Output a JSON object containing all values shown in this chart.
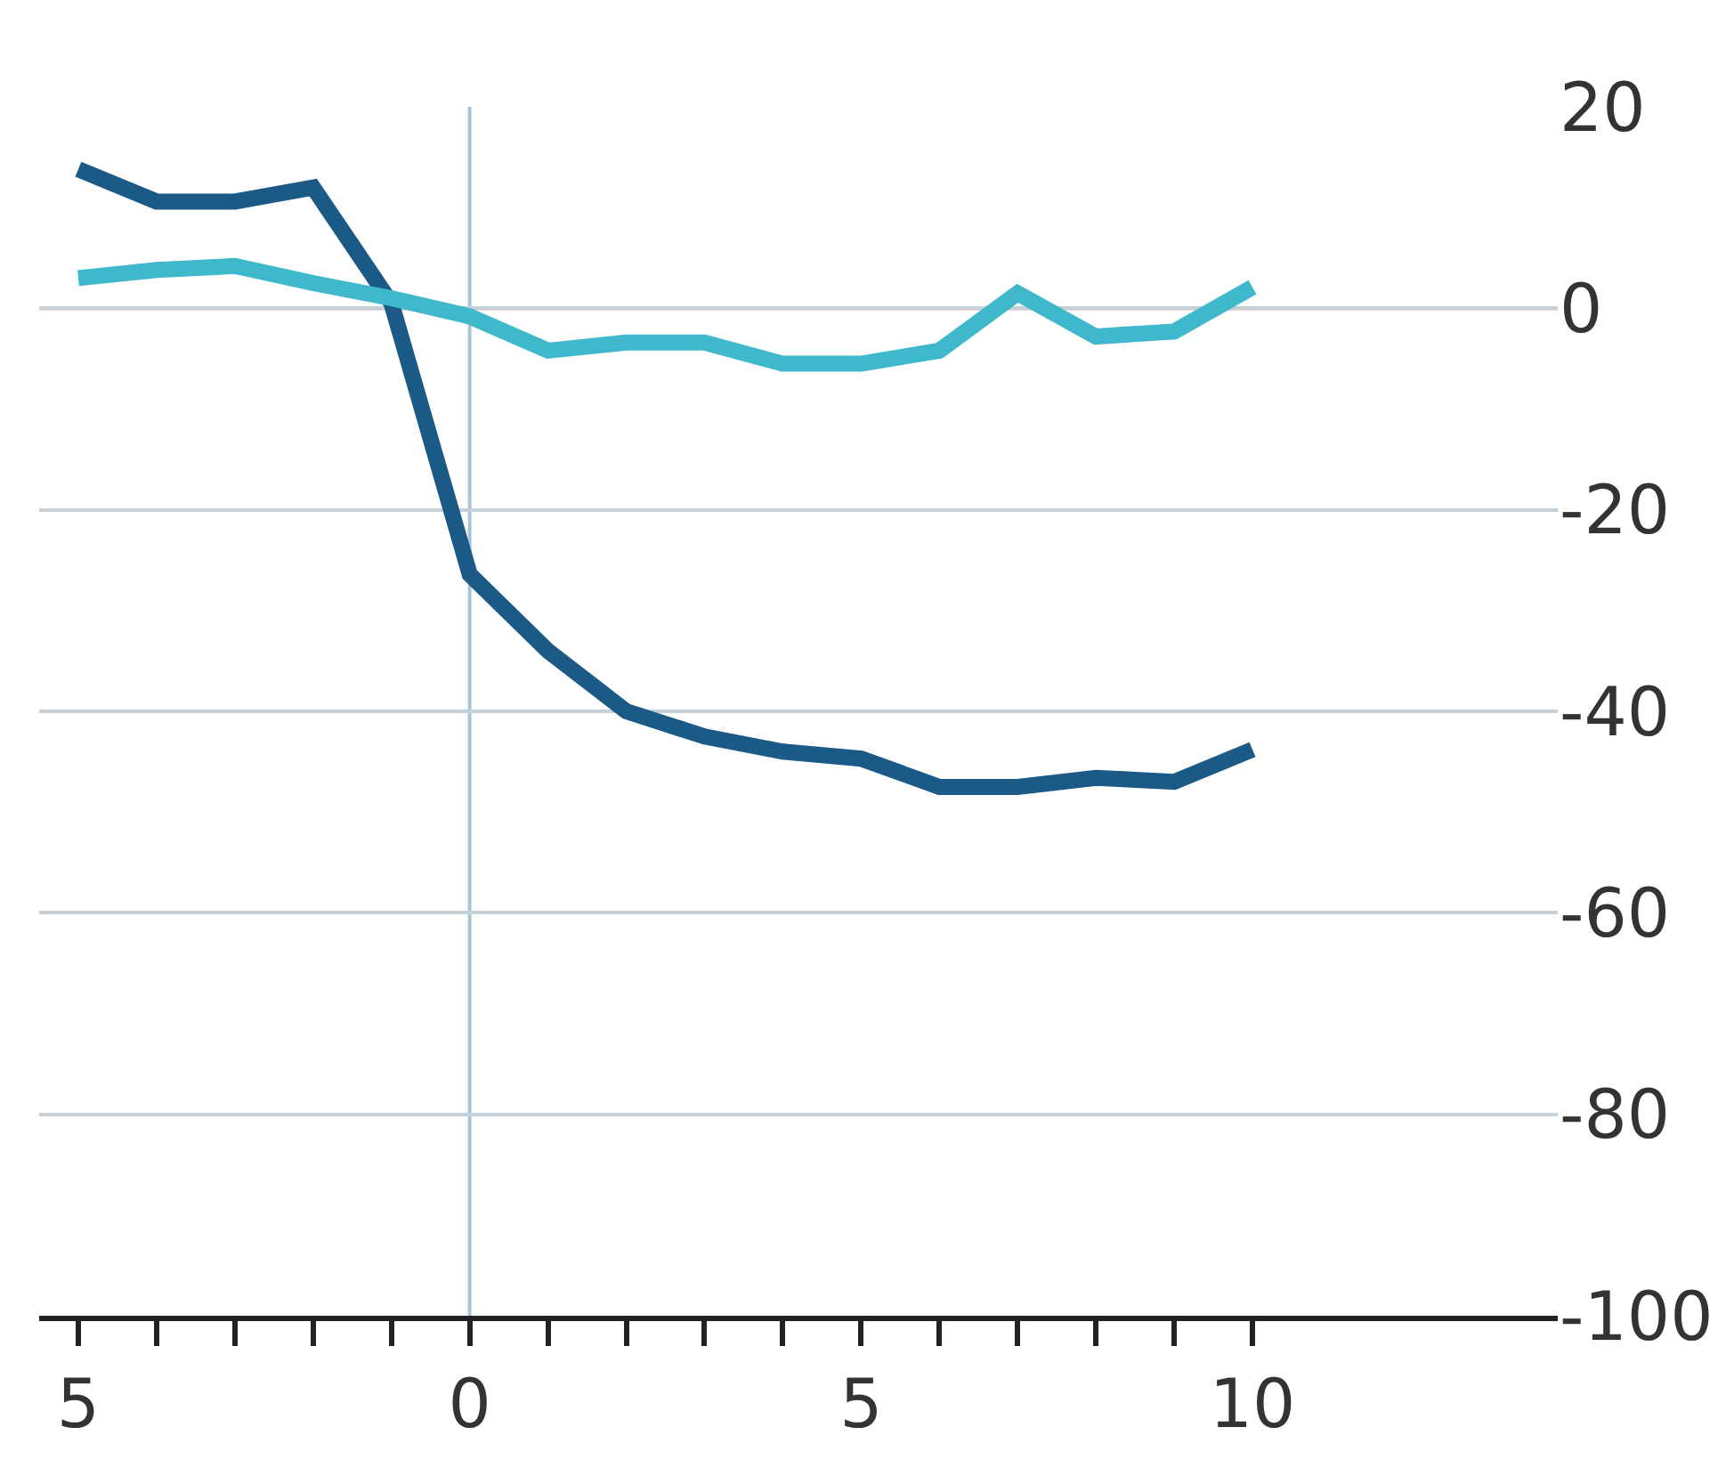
{
  "chart_data": {
    "type": "line",
    "x": [
      -5,
      -4,
      -3,
      -2,
      -1,
      0,
      1,
      2,
      3,
      4,
      5,
      6,
      7,
      8,
      9,
      10
    ],
    "series": [
      {
        "color": "#1b5a86",
        "values": [
          13.8,
          10.6,
          10.6,
          12,
          0.5,
          -26.4,
          -34,
          -40,
          -42.5,
          -44,
          -44.7,
          -47.5,
          -47.5,
          -46.6,
          -47,
          -43.8
        ]
      },
      {
        "color": "#3fb8cc",
        "values": [
          3,
          3.8,
          4.2,
          2.5,
          1,
          -0.8,
          -4.2,
          -3.4,
          -3.4,
          -5.5,
          -5.5,
          -4.2,
          1.5,
          -2.8,
          -2.3,
          2.1
        ]
      }
    ],
    "xlim": [
      -5.5,
      13.9
    ],
    "xticks": [
      {
        "value": -5,
        "label": "5"
      },
      {
        "value": -4,
        "label": null
      },
      {
        "value": -3,
        "label": null
      },
      {
        "value": -2,
        "label": null
      },
      {
        "value": -1,
        "label": null
      },
      0,
      {
        "value": 1,
        "label": null
      },
      {
        "value": 2,
        "label": null
      },
      {
        "value": 3,
        "label": null
      },
      {
        "value": 4,
        "label": null
      },
      5,
      {
        "value": 6,
        "label": null
      },
      {
        "value": 7,
        "label": null
      },
      {
        "value": 8,
        "label": null
      },
      {
        "value": 9,
        "label": null
      },
      10
    ],
    "ylim": [
      -100,
      20
    ],
    "yticks": [
      -100,
      -80,
      -60,
      -40,
      -20,
      0,
      20
    ],
    "grid": "y",
    "ref_lines": [
      {
        "axis": "y",
        "value": 0,
        "color": "#e0434a"
      },
      {
        "axis": "x",
        "value": 0,
        "color": "#a9c4d6"
      }
    ]
  }
}
